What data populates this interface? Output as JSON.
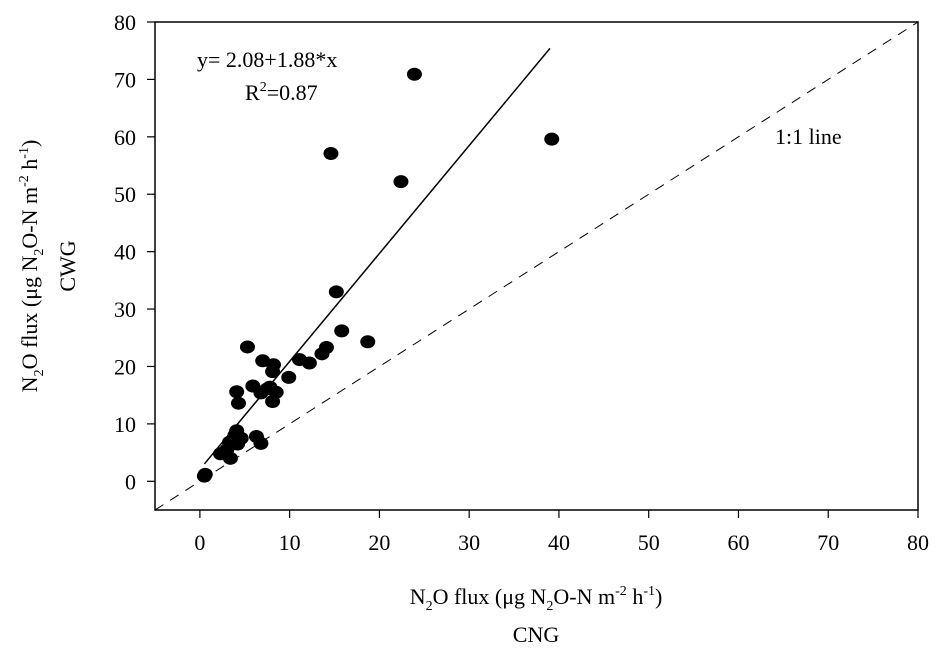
{
  "chart_data": {
    "type": "scatter",
    "x_axis": {
      "range": [
        -5,
        80
      ],
      "ticks": [
        "0",
        "10",
        "20",
        "30",
        "40",
        "50",
        "60",
        "70",
        "80"
      ],
      "label": {
        "a": "N",
        "a_sub": "2",
        "b": "O flux (μg N",
        "b_sub": "2",
        "c": "O-N m",
        "c_sup": "-2",
        "d": " h",
        "d_sup": "-1",
        "e": ")"
      },
      "label2": "CNG"
    },
    "y_axis": {
      "range": [
        -5,
        80
      ],
      "ticks": [
        "0",
        "10",
        "20",
        "30",
        "40",
        "50",
        "60",
        "70",
        "80"
      ],
      "label": {
        "a": "N",
        "a_sub": "2",
        "b": "O flux (μg N",
        "b_sub": "2",
        "c": "O-N m",
        "c_sup": "-2",
        "d": " h",
        "d_sup": "-1",
        "e": ")"
      },
      "label2": "CWG"
    },
    "regression": {
      "intercept": 2.08,
      "slope": 1.88,
      "x_range": [
        0.5,
        39
      ],
      "equation": "y= 2.08+1.88*x",
      "r2_prefix": "R",
      "r2_sup": "2",
      "r2_value": "=0.87"
    },
    "identity_line": {
      "label": "1:1 line",
      "style": "dashed"
    },
    "points": [
      {
        "x": 0.6,
        "y": 1.2
      },
      {
        "x": 0.5,
        "y": 0.9
      },
      {
        "x": 2.3,
        "y": 4.8
      },
      {
        "x": 3.0,
        "y": 5.5
      },
      {
        "x": 3.4,
        "y": 4.0
      },
      {
        "x": 3.3,
        "y": 6.8
      },
      {
        "x": 3.9,
        "y": 8.0
      },
      {
        "x": 4.1,
        "y": 8.8
      },
      {
        "x": 4.6,
        "y": 7.5
      },
      {
        "x": 4.2,
        "y": 6.5
      },
      {
        "x": 4.3,
        "y": 13.6
      },
      {
        "x": 4.1,
        "y": 15.6
      },
      {
        "x": 5.3,
        "y": 23.4
      },
      {
        "x": 5.9,
        "y": 16.6
      },
      {
        "x": 6.3,
        "y": 7.8
      },
      {
        "x": 6.8,
        "y": 6.6
      },
      {
        "x": 6.8,
        "y": 15.4
      },
      {
        "x": 7.0,
        "y": 21.0
      },
      {
        "x": 7.5,
        "y": 16.1
      },
      {
        "x": 7.8,
        "y": 16.4
      },
      {
        "x": 8.1,
        "y": 13.9
      },
      {
        "x": 8.1,
        "y": 19.1
      },
      {
        "x": 8.2,
        "y": 20.3
      },
      {
        "x": 8.5,
        "y": 15.5
      },
      {
        "x": 9.9,
        "y": 18.1
      },
      {
        "x": 11.1,
        "y": 21.2
      },
      {
        "x": 12.2,
        "y": 20.6
      },
      {
        "x": 13.6,
        "y": 22.2
      },
      {
        "x": 14.1,
        "y": 23.3
      },
      {
        "x": 15.2,
        "y": 33.0
      },
      {
        "x": 15.8,
        "y": 26.2
      },
      {
        "x": 18.7,
        "y": 24.3
      },
      {
        "x": 14.6,
        "y": 57.1
      },
      {
        "x": 22.4,
        "y": 52.2
      },
      {
        "x": 23.9,
        "y": 70.9
      },
      {
        "x": 39.2,
        "y": 59.6
      }
    ]
  }
}
